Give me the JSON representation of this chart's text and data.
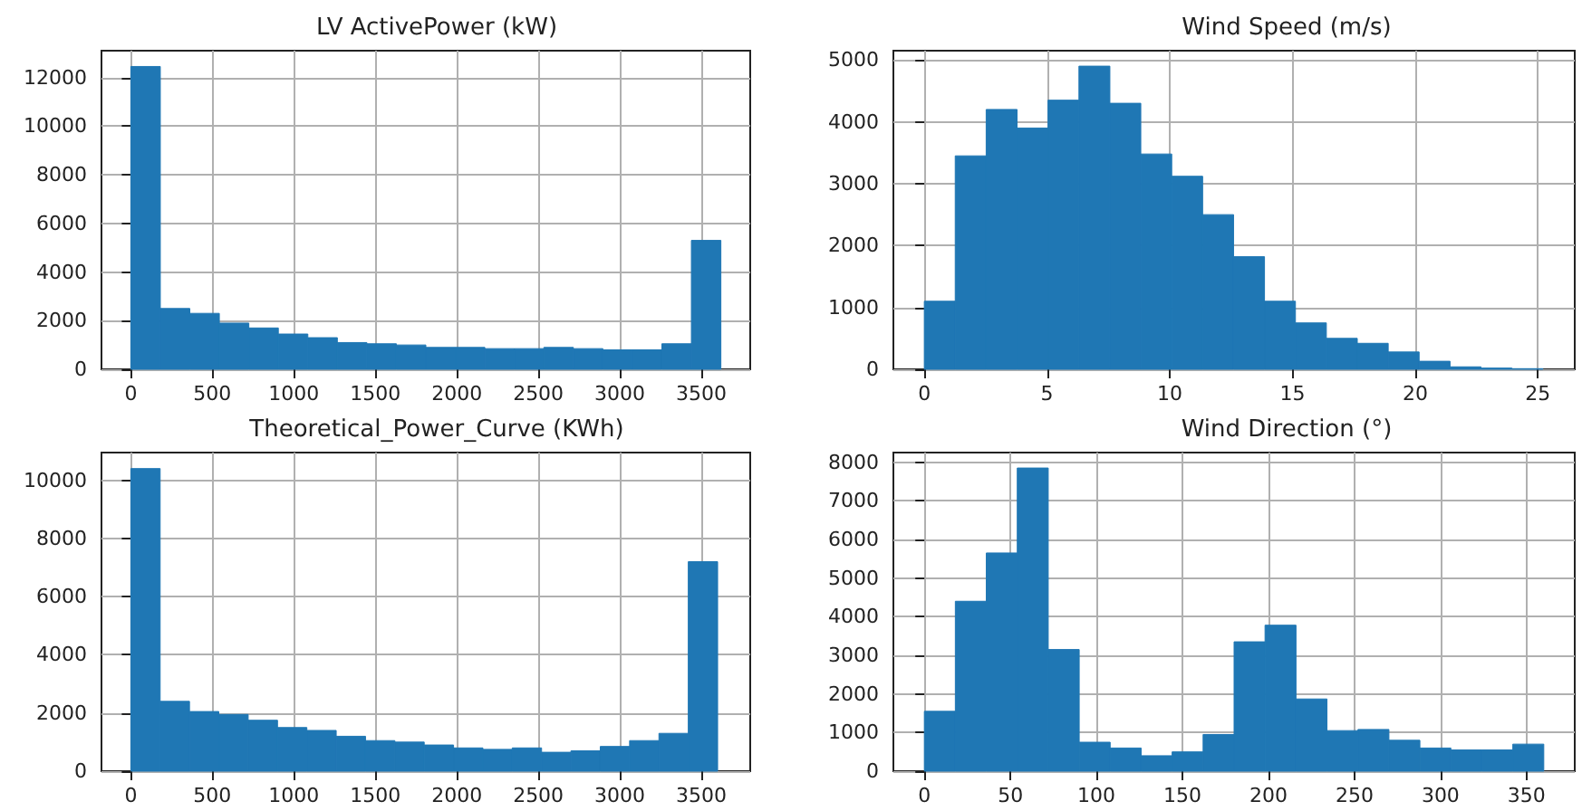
{
  "chart_data": [
    {
      "type": "histogram",
      "title": "LV ActivePower (kW)",
      "color": "#1f77b4",
      "grid": true,
      "bins": [
        0,
        181,
        362,
        543,
        724,
        905,
        1086,
        1267,
        1448,
        1629,
        1810,
        1991,
        2172,
        2353,
        2534,
        2715,
        2896,
        3077,
        3258,
        3439,
        3620
      ],
      "values": [
        12450,
        2500,
        2300,
        1900,
        1700,
        1450,
        1300,
        1100,
        1050,
        1000,
        900,
        900,
        850,
        850,
        900,
        850,
        800,
        800,
        1050,
        5300
      ],
      "xlim": [
        -180,
        3800
      ],
      "xticks": [
        0,
        500,
        1000,
        1500,
        2000,
        2500,
        3000,
        3500
      ],
      "ylim": [
        0,
        13100
      ],
      "yticks": [
        0,
        2000,
        4000,
        6000,
        8000,
        10000,
        12000
      ]
    },
    {
      "type": "histogram",
      "title": "Wind Speed (m/s)",
      "color": "#1f77b4",
      "grid": true,
      "bins": [
        0,
        1.26,
        2.52,
        3.78,
        5.04,
        6.3,
        7.56,
        8.82,
        10.08,
        11.34,
        12.6,
        13.86,
        15.12,
        16.38,
        17.64,
        18.9,
        20.16,
        21.42,
        22.68,
        23.94,
        25.2
      ],
      "values": [
        1100,
        3450,
        4200,
        3900,
        4350,
        4900,
        4300,
        3480,
        3120,
        2500,
        1820,
        1100,
        750,
        500,
        420,
        280,
        130,
        40,
        20,
        10
      ],
      "xlim": [
        -1.26,
        26.5
      ],
      "xticks": [
        0,
        5,
        10,
        15,
        20,
        25
      ],
      "ylim": [
        0,
        5150
      ],
      "yticks": [
        0,
        1000,
        2000,
        3000,
        4000,
        5000
      ]
    },
    {
      "type": "histogram",
      "title": "Theoretical_Power_Curve (KWh)",
      "color": "#1f77b4",
      "grid": true,
      "bins": [
        0,
        180,
        360,
        540,
        720,
        900,
        1080,
        1260,
        1440,
        1620,
        1800,
        1980,
        2160,
        2340,
        2520,
        2700,
        2880,
        3060,
        3240,
        3420,
        3600
      ],
      "values": [
        10400,
        2400,
        2050,
        1950,
        1750,
        1500,
        1400,
        1200,
        1050,
        1000,
        900,
        800,
        750,
        800,
        650,
        700,
        850,
        1050,
        1300,
        7200
      ],
      "xlim": [
        -180,
        3800
      ],
      "xticks": [
        0,
        500,
        1000,
        1500,
        2000,
        2500,
        3000,
        3500
      ],
      "ylim": [
        0,
        10950
      ],
      "yticks": [
        0,
        2000,
        4000,
        6000,
        8000,
        10000
      ]
    },
    {
      "type": "histogram",
      "title": "Wind Direction (°)",
      "color": "#1f77b4",
      "grid": true,
      "bins": [
        0,
        18,
        36,
        54,
        72,
        90,
        108,
        126,
        144,
        162,
        180,
        198,
        216,
        234,
        252,
        270,
        288,
        306,
        324,
        342,
        360
      ],
      "values": [
        1550,
        4400,
        5650,
        7850,
        3150,
        750,
        600,
        400,
        500,
        950,
        3350,
        3780,
        1870,
        1050,
        1080,
        800,
        600,
        550,
        550,
        700
      ],
      "xlim": [
        -18,
        378
      ],
      "xticks": [
        0,
        50,
        100,
        150,
        200,
        250,
        300,
        350
      ],
      "ylim": [
        0,
        8250
      ],
      "yticks": [
        0,
        1000,
        2000,
        3000,
        4000,
        5000,
        6000,
        7000,
        8000
      ]
    }
  ]
}
